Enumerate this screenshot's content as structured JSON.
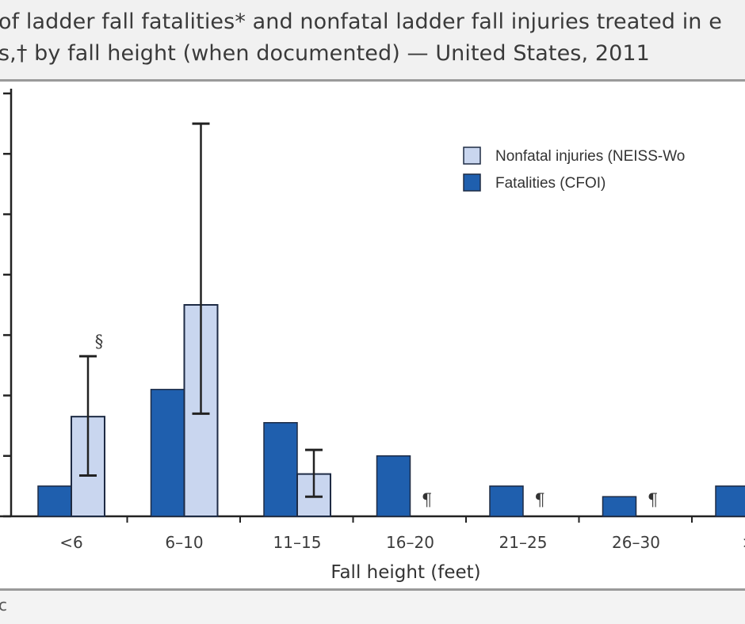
{
  "title": {
    "line1": "of ladder fall fatalities* and nonfatal ladder fall injuries treated in e",
    "line2": "s,† by fall height (when documented) — United States, 2011"
  },
  "footer": {
    "text": "c"
  },
  "colors": {
    "fatal": "#1f5fae",
    "nonfatal": "#c9d6ef",
    "bar_stroke": "#1e2b44",
    "axis": "#222222"
  },
  "chart_data": {
    "type": "bar",
    "xlabel": "Fall height (feet)",
    "ylabel": "",
    "categories": [
      "<6",
      "6–10",
      "11–15",
      "16–20",
      "21–25",
      "26–30",
      ">"
    ],
    "ylim": [
      0,
      14
    ],
    "series": [
      {
        "name": "Fatalities (CFOI)",
        "key": "fatal",
        "values": [
          1.0,
          4.2,
          3.1,
          2.0,
          1.0,
          0.65,
          1.0
        ]
      },
      {
        "name": "Nonfatal injuries (NEISS-Wo",
        "key": "nonfatal",
        "values": [
          3.3,
          7.0,
          1.4,
          null,
          null,
          null,
          null
        ],
        "error_low": [
          1.35,
          3.4,
          0.65,
          null,
          null,
          null,
          null
        ],
        "error_high": [
          5.3,
          13.0,
          2.2,
          null,
          null,
          null,
          null
        ]
      }
    ],
    "annotations": [
      {
        "category": "<6",
        "text": "§"
      },
      {
        "category": "16–20",
        "text": "¶"
      },
      {
        "category": "21–25",
        "text": "¶"
      },
      {
        "category": "26–30",
        "text": "¶"
      }
    ],
    "legend_position": "top-right",
    "grid": false
  }
}
